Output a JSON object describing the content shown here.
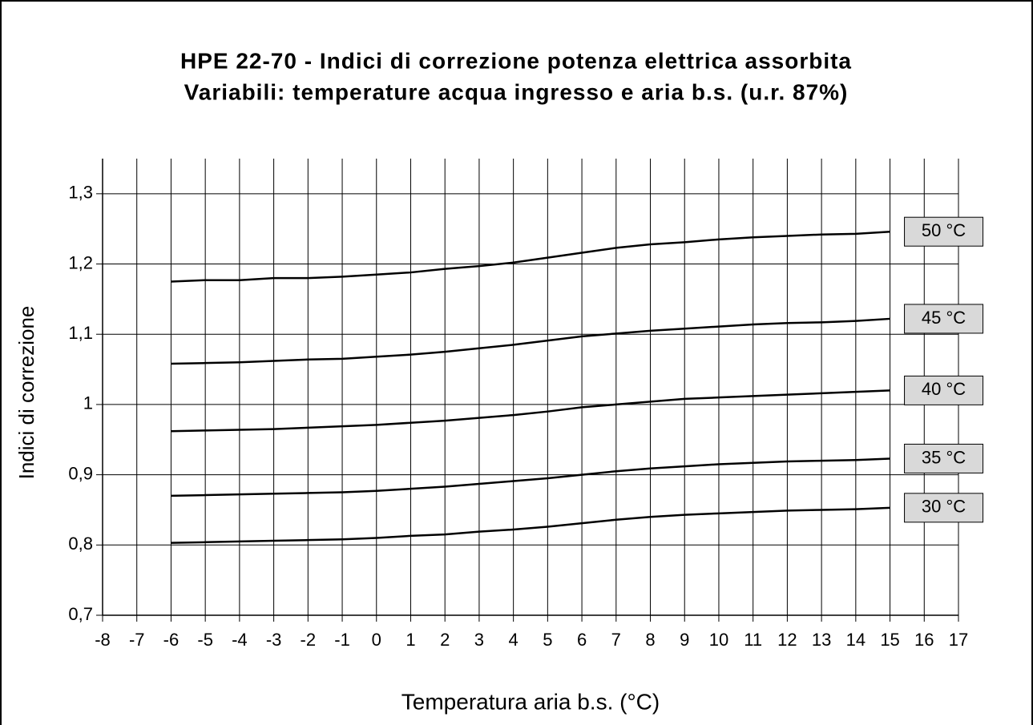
{
  "chart_data": {
    "type": "line",
    "title": "HPE 22-70 - Indici di correzione potenza elettrica assorbita",
    "subtitle": "Variabili: temperature acqua ingresso e aria b.s. (u.r. 87%)",
    "x_label": "Temperatura aria b.s. (°C)",
    "y_label": "Indici di correzione",
    "x": [
      -6,
      -5,
      -4,
      -3,
      -2,
      -1,
      0,
      1,
      2,
      3,
      4,
      5,
      6,
      7,
      8,
      9,
      10,
      11,
      12,
      13,
      14,
      15
    ],
    "series": [
      {
        "name": "50 °C",
        "color": "#000000",
        "values": [
          1.175,
          1.177,
          1.177,
          1.18,
          1.18,
          1.182,
          1.185,
          1.188,
          1.193,
          1.197,
          1.202,
          1.209,
          1.216,
          1.223,
          1.228,
          1.231,
          1.235,
          1.238,
          1.24,
          1.242,
          1.243,
          1.246
        ]
      },
      {
        "name": "45 °C",
        "color": "#000000",
        "values": [
          1.058,
          1.059,
          1.06,
          1.062,
          1.064,
          1.065,
          1.068,
          1.071,
          1.075,
          1.08,
          1.085,
          1.091,
          1.097,
          1.101,
          1.105,
          1.108,
          1.111,
          1.114,
          1.116,
          1.117,
          1.119,
          1.122
        ]
      },
      {
        "name": "40 °C",
        "color": "#000000",
        "values": [
          0.962,
          0.963,
          0.964,
          0.965,
          0.967,
          0.969,
          0.971,
          0.974,
          0.977,
          0.981,
          0.985,
          0.99,
          0.996,
          1.0,
          1.004,
          1.008,
          1.01,
          1.012,
          1.014,
          1.016,
          1.018,
          1.02
        ]
      },
      {
        "name": "35 °C",
        "color": "#000000",
        "values": [
          0.87,
          0.871,
          0.872,
          0.873,
          0.874,
          0.875,
          0.877,
          0.88,
          0.883,
          0.887,
          0.891,
          0.895,
          0.9,
          0.905,
          0.909,
          0.912,
          0.915,
          0.917,
          0.919,
          0.92,
          0.921,
          0.923
        ]
      },
      {
        "name": "30 °C",
        "color": "#000000",
        "values": [
          0.803,
          0.804,
          0.805,
          0.806,
          0.807,
          0.808,
          0.81,
          0.813,
          0.815,
          0.819,
          0.822,
          0.826,
          0.831,
          0.836,
          0.84,
          0.843,
          0.845,
          0.847,
          0.849,
          0.85,
          0.851,
          0.853
        ]
      }
    ],
    "xlim": [
      -8,
      17
    ],
    "xticks": [
      -8,
      -7,
      -6,
      -5,
      -4,
      -3,
      -2,
      -1,
      0,
      1,
      2,
      3,
      4,
      5,
      6,
      7,
      8,
      9,
      10,
      11,
      12,
      13,
      14,
      15,
      16,
      17
    ],
    "ylim": [
      0.7,
      1.35
    ],
    "yticks": [
      {
        "value": 0.7,
        "label": "0,7"
      },
      {
        "value": 0.8,
        "label": "0,8"
      },
      {
        "value": 0.9,
        "label": "0,9"
      },
      1,
      {
        "value": 1.1,
        "label": "1,1"
      },
      {
        "value": 1.2,
        "label": "1,2"
      },
      {
        "value": 1.3,
        "label": "1,3"
      }
    ],
    "grid": true
  }
}
